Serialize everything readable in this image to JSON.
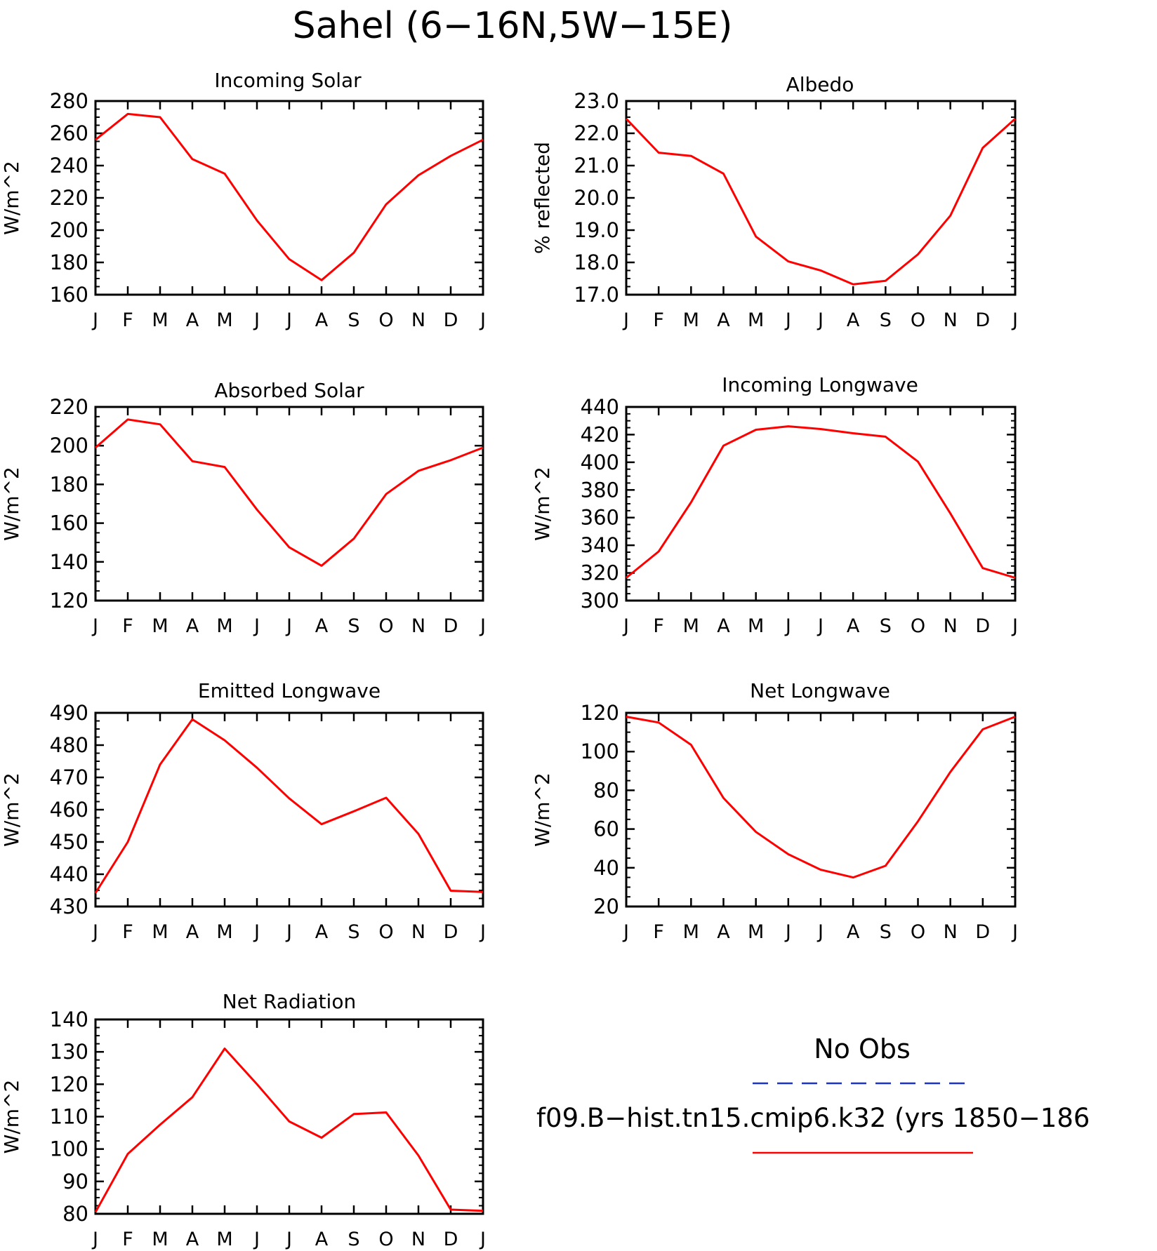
{
  "figure_title": "Sahel (6−16N,5W−15E)",
  "month_labels": [
    "J",
    "F",
    "M",
    "A",
    "M",
    "J",
    "J",
    "A",
    "S",
    "O",
    "N",
    "D",
    "J"
  ],
  "legend": {
    "obs_label": "No Obs",
    "obs_color": "#1a33cc",
    "model_label": "f09.B−hist.tn15.cmip6.k32 (yrs 1850−186",
    "model_color": "#ff0000"
  },
  "chart_data": [
    {
      "type": "line",
      "title": "Incoming Solar",
      "ylabel": "W/m^2",
      "ylim": [
        160,
        280
      ],
      "yticks": [
        160,
        180,
        200,
        220,
        240,
        260,
        280
      ],
      "ytick_labels": [
        "160",
        "180",
        "200",
        "220",
        "240",
        "260",
        "280"
      ],
      "categories": [
        "J",
        "F",
        "M",
        "A",
        "M",
        "J",
        "J",
        "A",
        "S",
        "O",
        "N",
        "D",
        "J"
      ],
      "series": [
        {
          "color": "#ff0000",
          "values": [
            256,
            272,
            270,
            244,
            235,
            206,
            182,
            169,
            186,
            216,
            234,
            246,
            256
          ]
        }
      ]
    },
    {
      "type": "line",
      "title": "Albedo",
      "ylabel": "% reflected",
      "ylim": [
        17.0,
        23.0
      ],
      "yticks": [
        17,
        18,
        19,
        20,
        21,
        22,
        23
      ],
      "ytick_labels": [
        "17.0",
        "18.0",
        "19.0",
        "20.0",
        "21.0",
        "22.0",
        "23.0"
      ],
      "categories": [
        "J",
        "F",
        "M",
        "A",
        "M",
        "J",
        "J",
        "A",
        "S",
        "O",
        "N",
        "D",
        "J"
      ],
      "series": [
        {
          "color": "#ff0000",
          "values": [
            22.45,
            21.4,
            21.3,
            20.75,
            18.8,
            18.03,
            17.75,
            17.32,
            17.43,
            18.25,
            19.45,
            21.55,
            22.45
          ]
        }
      ]
    },
    {
      "type": "line",
      "title": "Absorbed Solar",
      "ylabel": "W/m^2",
      "ylim": [
        120,
        220
      ],
      "yticks": [
        120,
        140,
        160,
        180,
        200,
        220
      ],
      "ytick_labels": [
        "120",
        "140",
        "160",
        "180",
        "200",
        "220"
      ],
      "categories": [
        "J",
        "F",
        "M",
        "A",
        "M",
        "J",
        "J",
        "A",
        "S",
        "O",
        "N",
        "D",
        "J"
      ],
      "series": [
        {
          "color": "#ff0000",
          "values": [
            199,
            213.5,
            211,
            192,
            189,
            167,
            147.5,
            138,
            152,
            175,
            187,
            192.5,
            199
          ]
        }
      ]
    },
    {
      "type": "line",
      "title": "Incoming Longwave",
      "ylabel": "W/m^2",
      "ylim": [
        300,
        440
      ],
      "yticks": [
        300,
        320,
        340,
        360,
        380,
        400,
        420,
        440
      ],
      "ytick_labels": [
        "300",
        "320",
        "340",
        "360",
        "380",
        "400",
        "420",
        "440"
      ],
      "categories": [
        "J",
        "F",
        "M",
        "A",
        "M",
        "J",
        "J",
        "A",
        "S",
        "O",
        "N",
        "D",
        "J"
      ],
      "series": [
        {
          "color": "#ff0000",
          "values": [
            316.5,
            335.5,
            371,
            412,
            423.5,
            426,
            424,
            421,
            418.5,
            400.5,
            363,
            323.5,
            316.5
          ]
        }
      ]
    },
    {
      "type": "line",
      "title": "Emitted Longwave",
      "ylabel": "W/m^2",
      "ylim": [
        430,
        490
      ],
      "yticks": [
        430,
        440,
        450,
        460,
        470,
        480,
        490
      ],
      "ytick_labels": [
        "430",
        "440",
        "450",
        "460",
        "470",
        "480",
        "490"
      ],
      "categories": [
        "J",
        "F",
        "M",
        "A",
        "M",
        "J",
        "J",
        "A",
        "S",
        "O",
        "N",
        "D",
        "J"
      ],
      "series": [
        {
          "color": "#ff0000",
          "values": [
            434.2,
            450,
            474,
            488,
            481.5,
            473,
            463.5,
            455.5,
            459.5,
            463.7,
            452.5,
            434.9,
            434.5
          ]
        }
      ]
    },
    {
      "type": "line",
      "title": "Net Longwave",
      "ylabel": "W/m^2",
      "ylim": [
        20,
        120
      ],
      "yticks": [
        20,
        40,
        60,
        80,
        100,
        120
      ],
      "ytick_labels": [
        "20",
        "40",
        "60",
        "80",
        "100",
        "120"
      ],
      "categories": [
        "J",
        "F",
        "M",
        "A",
        "M",
        "J",
        "J",
        "A",
        "S",
        "O",
        "N",
        "D",
        "J"
      ],
      "series": [
        {
          "color": "#ff0000",
          "values": [
            118,
            115,
            103.5,
            76,
            58.5,
            47,
            39,
            35,
            41,
            64,
            89.5,
            111.5,
            118
          ]
        }
      ]
    },
    {
      "type": "line",
      "title": "Net Radiation",
      "ylabel": "W/m^2",
      "ylim": [
        80,
        140
      ],
      "yticks": [
        80,
        90,
        100,
        110,
        120,
        130,
        140
      ],
      "ytick_labels": [
        "80",
        "90",
        "100",
        "110",
        "120",
        "130",
        "140"
      ],
      "categories": [
        "J",
        "F",
        "M",
        "A",
        "M",
        "J",
        "J",
        "A",
        "S",
        "O",
        "N",
        "D",
        "J"
      ],
      "series": [
        {
          "color": "#ff0000",
          "values": [
            80.5,
            98.5,
            107.5,
            116,
            131,
            120,
            108.5,
            103.5,
            110.8,
            111.3,
            98,
            81.3,
            80.9
          ]
        }
      ]
    }
  ]
}
